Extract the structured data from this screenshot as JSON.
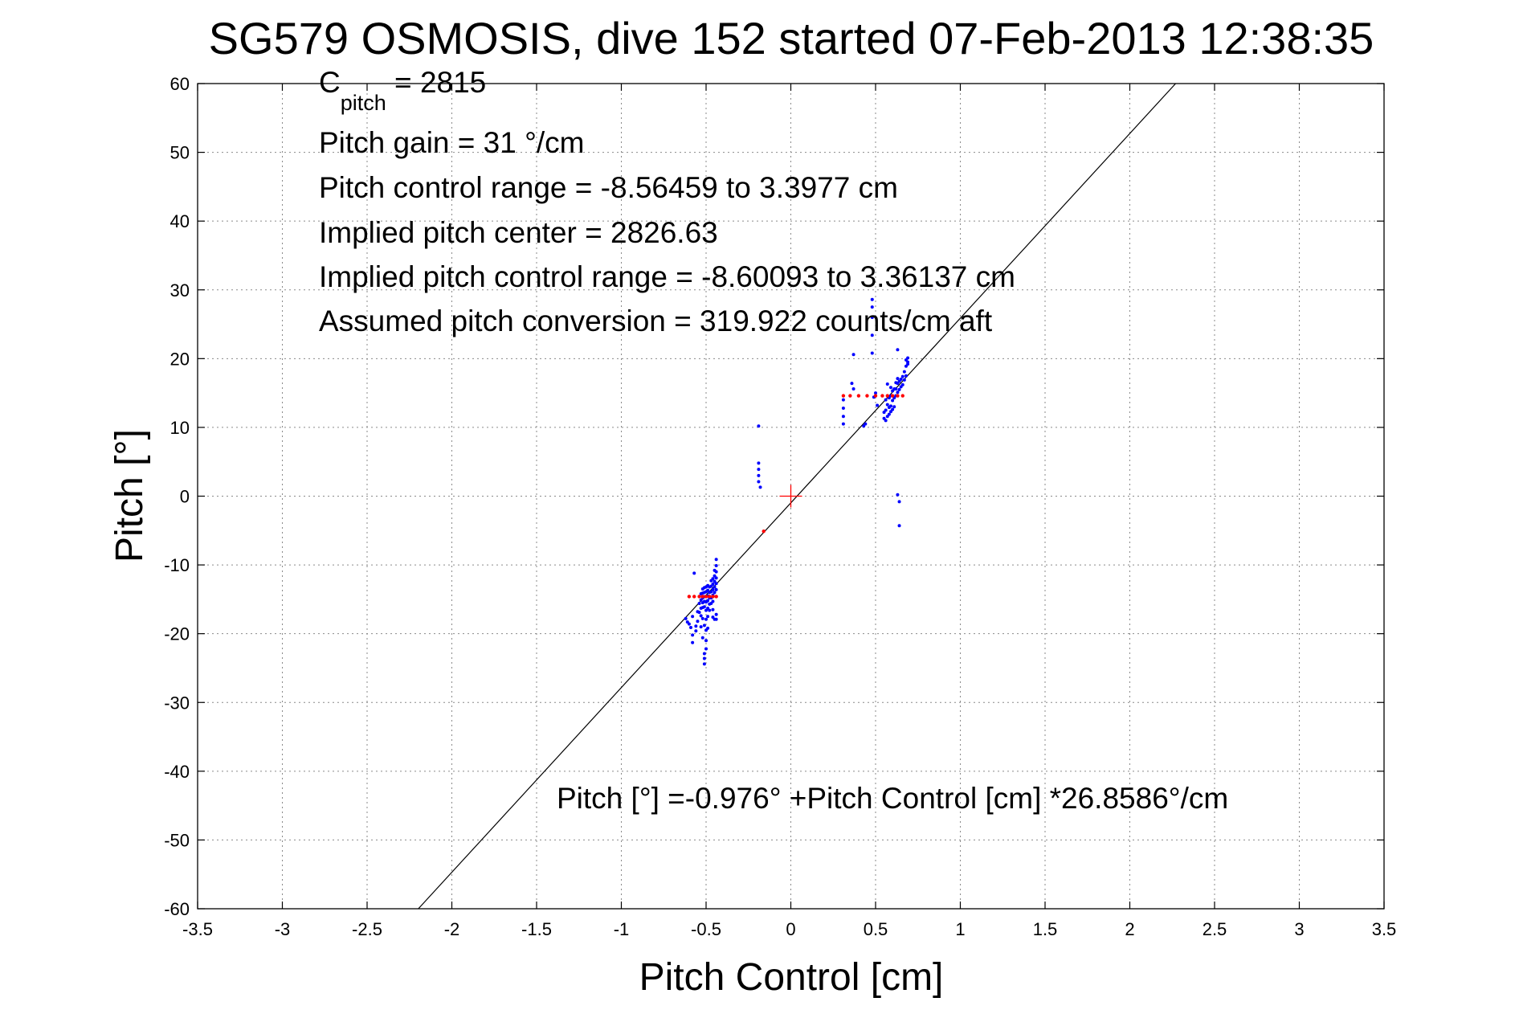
{
  "chart_data": {
    "type": "scatter",
    "title": "SG579 OSMOSIS, dive 152 started 07-Feb-2013 12:38:35",
    "xlabel": "Pitch Control [cm]",
    "ylabel": "Pitch [°]",
    "xlim": [
      -3.5,
      3.5
    ],
    "ylim": [
      -60,
      60
    ],
    "xticks": [
      -3.5,
      -3,
      -2.5,
      -2,
      -1.5,
      -1,
      -0.5,
      0,
      0.5,
      1,
      1.5,
      2,
      2.5,
      3,
      3.5
    ],
    "yticks": [
      -60,
      -50,
      -40,
      -30,
      -20,
      -10,
      0,
      10,
      20,
      30,
      40,
      50,
      60
    ],
    "xtick_labels": [
      "-3.5",
      "-3",
      "-2.5",
      "-2",
      "-1.5",
      "-1",
      "-0.5",
      "0",
      "0.5",
      "1",
      "1.5",
      "2",
      "2.5",
      "3",
      "3.5"
    ],
    "ytick_labels": [
      "-60",
      "-50",
      "-40",
      "-30",
      "-20",
      "-10",
      "0",
      "10",
      "20",
      "30",
      "40",
      "50",
      "60"
    ],
    "grid": true,
    "colors": {
      "measured": "#0000ff",
      "target": "#ff0000",
      "fit": "#000000",
      "center": "#ff0000"
    },
    "annotations": {
      "c_pitch_main": "C",
      "c_pitch_sub": "pitch",
      "c_pitch_value": " = 2815",
      "pitch_gain": "Pitch gain = 31 °/cm",
      "pitch_control_range": "Pitch control range = -8.56459 to 3.3977 cm",
      "implied_center": "Implied pitch center = 2826.63",
      "implied_range": "Implied pitch control range = -8.60093 to 3.36137 cm",
      "assumed_conversion": "Assumed pitch conversion = 319.922 counts/cm aft",
      "fit_equation": "Pitch [°] =-0.976° +Pitch Control [cm] *26.8586°/cm"
    },
    "fit_line": {
      "intercept": -0.976,
      "slope": 26.8586
    },
    "center_marker": {
      "x": 0,
      "y": 0
    },
    "series": [
      {
        "name": "measured",
        "marker": "dot",
        "points": [
          [
            -0.62,
            -17.8
          ],
          [
            -0.61,
            -18.3
          ],
          [
            -0.6,
            -18.6
          ],
          [
            -0.59,
            -19.1
          ],
          [
            -0.58,
            -17.5
          ],
          [
            -0.58,
            -20.2
          ],
          [
            -0.58,
            -21.3
          ],
          [
            -0.57,
            -11.2
          ],
          [
            -0.56,
            -18.9
          ],
          [
            -0.56,
            -19.6
          ],
          [
            -0.55,
            -16.8
          ],
          [
            -0.55,
            -18.2
          ],
          [
            -0.54,
            -15.6
          ],
          [
            -0.54,
            -16.9
          ],
          [
            -0.53,
            -14.2
          ],
          [
            -0.53,
            -15.1
          ],
          [
            -0.53,
            -16.3
          ],
          [
            -0.53,
            -17.4
          ],
          [
            -0.53,
            -19.0
          ],
          [
            -0.52,
            -13.5
          ],
          [
            -0.52,
            -14.1
          ],
          [
            -0.52,
            -14.8
          ],
          [
            -0.52,
            -15.5
          ],
          [
            -0.52,
            -16.2
          ],
          [
            -0.52,
            -17.8
          ],
          [
            -0.52,
            -20.6
          ],
          [
            -0.51,
            -13.3
          ],
          [
            -0.51,
            -14.0
          ],
          [
            -0.51,
            -14.6
          ],
          [
            -0.51,
            -15.3
          ],
          [
            -0.51,
            -16.1
          ],
          [
            -0.51,
            -18.8
          ],
          [
            -0.51,
            -22.9
          ],
          [
            -0.51,
            -23.6
          ],
          [
            -0.51,
            -24.4
          ],
          [
            -0.5,
            -13.2
          ],
          [
            -0.5,
            -13.9
          ],
          [
            -0.5,
            -14.6
          ],
          [
            -0.5,
            -15.4
          ],
          [
            -0.5,
            -16.6
          ],
          [
            -0.5,
            -17.9
          ],
          [
            -0.5,
            -19.5
          ],
          [
            -0.5,
            -21.0
          ],
          [
            -0.5,
            -22.2
          ],
          [
            -0.49,
            -13.0
          ],
          [
            -0.49,
            -13.7
          ],
          [
            -0.49,
            -14.5
          ],
          [
            -0.49,
            -15.2
          ],
          [
            -0.49,
            -16.3
          ],
          [
            -0.49,
            -17.5
          ],
          [
            -0.49,
            -19.2
          ],
          [
            -0.48,
            -13.2
          ],
          [
            -0.48,
            -14.0
          ],
          [
            -0.48,
            -14.8
          ],
          [
            -0.48,
            -15.7
          ],
          [
            -0.48,
            -16.6
          ],
          [
            -0.47,
            -12.3
          ],
          [
            -0.47,
            -13.1
          ],
          [
            -0.47,
            -13.9
          ],
          [
            -0.47,
            -14.8
          ],
          [
            -0.47,
            -15.6
          ],
          [
            -0.46,
            -12.0
          ],
          [
            -0.46,
            -12.8
          ],
          [
            -0.46,
            -13.6
          ],
          [
            -0.46,
            -14.4
          ],
          [
            -0.46,
            -15.3
          ],
          [
            -0.46,
            -16.5
          ],
          [
            -0.46,
            -17.6
          ],
          [
            -0.45,
            -10.8
          ],
          [
            -0.45,
            -11.6
          ],
          [
            -0.45,
            -12.4
          ],
          [
            -0.45,
            -13.2
          ],
          [
            -0.45,
            -14.0
          ],
          [
            -0.45,
            -17.9
          ],
          [
            -0.44,
            -9.2
          ],
          [
            -0.44,
            -10.1
          ],
          [
            -0.44,
            -11.0
          ],
          [
            -0.44,
            -11.9
          ],
          [
            -0.44,
            -12.7
          ],
          [
            -0.44,
            -13.6
          ],
          [
            -0.44,
            -14.6
          ],
          [
            -0.44,
            -17.2
          ],
          [
            -0.44,
            -17.9
          ],
          [
            -0.19,
            10.2
          ],
          [
            -0.19,
            4.8
          ],
          [
            -0.19,
            3.9
          ],
          [
            -0.19,
            3.0
          ],
          [
            -0.19,
            2.1
          ],
          [
            -0.18,
            1.3
          ],
          [
            0.31,
            10.5
          ],
          [
            0.31,
            11.6
          ],
          [
            0.31,
            12.8
          ],
          [
            0.31,
            14.0
          ],
          [
            0.36,
            16.4
          ],
          [
            0.37,
            15.6
          ],
          [
            0.37,
            20.6
          ],
          [
            0.43,
            10.2
          ],
          [
            0.44,
            10.5
          ],
          [
            0.48,
            28.6
          ],
          [
            0.48,
            27.5
          ],
          [
            0.48,
            26.0
          ],
          [
            0.48,
            23.4
          ],
          [
            0.48,
            20.8
          ],
          [
            0.49,
            14.4
          ],
          [
            0.5,
            15.0
          ],
          [
            0.51,
            13.2
          ],
          [
            0.55,
            11.3
          ],
          [
            0.55,
            12.2
          ],
          [
            0.56,
            11.0
          ],
          [
            0.56,
            12.5
          ],
          [
            0.56,
            14.0
          ],
          [
            0.57,
            11.6
          ],
          [
            0.57,
            13.3
          ],
          [
            0.57,
            16.3
          ],
          [
            0.58,
            11.9
          ],
          [
            0.58,
            12.9
          ],
          [
            0.58,
            14.3
          ],
          [
            0.59,
            12.3
          ],
          [
            0.59,
            13.1
          ],
          [
            0.59,
            14.6
          ],
          [
            0.59,
            15.8
          ],
          [
            0.6,
            12.6
          ],
          [
            0.6,
            13.9
          ],
          [
            0.6,
            15.3
          ],
          [
            0.61,
            13.0
          ],
          [
            0.61,
            14.3
          ],
          [
            0.61,
            15.6
          ],
          [
            0.62,
            14.6
          ],
          [
            0.62,
            15.6
          ],
          [
            0.62,
            16.5
          ],
          [
            0.63,
            15.1
          ],
          [
            0.63,
            16.4
          ],
          [
            0.63,
            17.1
          ],
          [
            0.63,
            21.3
          ],
          [
            0.63,
            0.2
          ],
          [
            0.64,
            -0.8
          ],
          [
            0.64,
            -4.3
          ],
          [
            0.64,
            15.5
          ],
          [
            0.64,
            16.7
          ],
          [
            0.65,
            15.9
          ],
          [
            0.65,
            17.0
          ],
          [
            0.66,
            16.2
          ],
          [
            0.66,
            17.4
          ],
          [
            0.67,
            16.9
          ],
          [
            0.67,
            18.1
          ],
          [
            0.68,
            17.5
          ],
          [
            0.68,
            18.9
          ],
          [
            0.68,
            19.8
          ],
          [
            0.69,
            19.2
          ],
          [
            0.69,
            20.1
          ],
          [
            0.69,
            19.5
          ]
        ]
      },
      {
        "name": "target",
        "marker": "dot",
        "points": [
          [
            -0.6,
            -14.6
          ],
          [
            -0.57,
            -14.6
          ],
          [
            -0.54,
            -14.6
          ],
          [
            -0.52,
            -14.6
          ],
          [
            -0.5,
            -14.6
          ],
          [
            -0.48,
            -14.6
          ],
          [
            -0.46,
            -14.6
          ],
          [
            -0.44,
            -14.6
          ],
          [
            -0.16,
            -5.1
          ],
          [
            0.31,
            14.6
          ],
          [
            0.35,
            14.6
          ],
          [
            0.4,
            14.6
          ],
          [
            0.45,
            14.6
          ],
          [
            0.5,
            14.6
          ],
          [
            0.54,
            14.6
          ],
          [
            0.57,
            14.6
          ],
          [
            0.6,
            14.6
          ],
          [
            0.63,
            14.6
          ],
          [
            0.66,
            14.6
          ]
        ]
      }
    ]
  }
}
